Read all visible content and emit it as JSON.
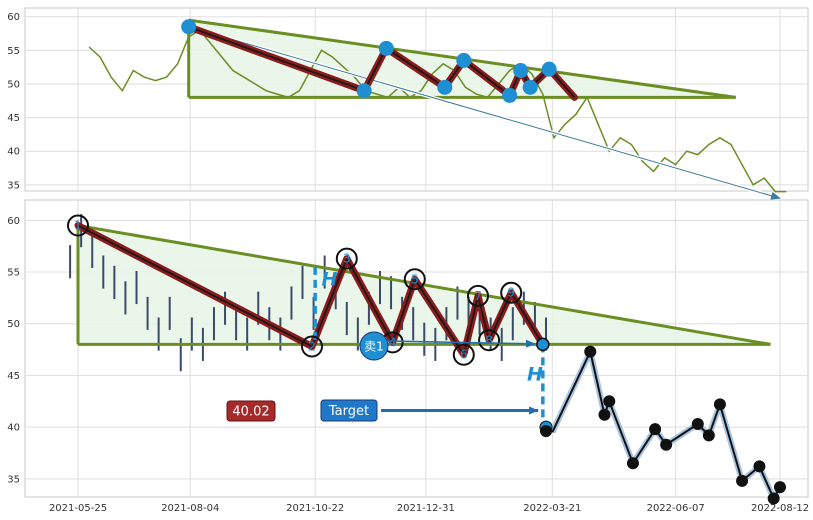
{
  "chart_data": [
    {
      "type": "line",
      "panel": "top",
      "ylim": [
        32,
        61
      ],
      "y_ticks": [
        "35",
        "40",
        "45",
        "50",
        "55",
        "60"
      ],
      "x_tick_dates": [
        "2021-05-25",
        "2021-08-04",
        "2021-10-22",
        "2021-12-31",
        "2022-03-21",
        "2022-06-07",
        "2022-08-12"
      ],
      "grid": true,
      "series": [
        {
          "color": "#6b8e23",
          "x": [
            "2021-06-01",
            "2021-06-08",
            "2021-06-15",
            "2021-06-22",
            "2021-06-29",
            "2021-07-06",
            "2021-07-13",
            "2021-07-20",
            "2021-07-27",
            "2021-08-03",
            "2021-08-10",
            "2021-08-17",
            "2021-08-24",
            "2021-08-31",
            "2021-09-07",
            "2021-09-14",
            "2021-09-21",
            "2021-09-28",
            "2021-10-05",
            "2021-10-12",
            "2021-10-19",
            "2021-10-26",
            "2021-11-02",
            "2021-11-09",
            "2021-11-16",
            "2021-11-23",
            "2021-11-30",
            "2021-12-07",
            "2021-12-14",
            "2021-12-21",
            "2021-12-28",
            "2022-01-04",
            "2022-01-11",
            "2022-01-18",
            "2022-01-25",
            "2022-02-01",
            "2022-02-08",
            "2022-02-15",
            "2022-02-22",
            "2022-03-01",
            "2022-03-08",
            "2022-03-15",
            "2022-03-22",
            "2022-03-29",
            "2022-04-05",
            "2022-04-12",
            "2022-04-19",
            "2022-04-26",
            "2022-05-03",
            "2022-05-10",
            "2022-05-17",
            "2022-05-24",
            "2022-05-31",
            "2022-06-07",
            "2022-06-14",
            "2022-06-21",
            "2022-06-28",
            "2022-07-05",
            "2022-07-12",
            "2022-07-19",
            "2022-07-26",
            "2022-08-02",
            "2022-08-09",
            "2022-08-16"
          ],
          "y": [
            55.5,
            54,
            51,
            49,
            52,
            51,
            50.5,
            51,
            53,
            57,
            58,
            56,
            54,
            52,
            51,
            50,
            49,
            48.5,
            48,
            49,
            52,
            55,
            54,
            52.5,
            51,
            49,
            48.5,
            48,
            49.5,
            48,
            49,
            51.5,
            53,
            52,
            49.5,
            48.5,
            48,
            50,
            52,
            53,
            51.5,
            48.5,
            42,
            44,
            45.5,
            48,
            44,
            40,
            42,
            41,
            38.5,
            37,
            39,
            38,
            40,
            39.5,
            41,
            42,
            41,
            38,
            35,
            36,
            34,
            34
          ]
        }
      ],
      "pattern_points": [
        {
          "x": "2021-08-03",
          "y": 58.5
        },
        {
          "x": "2021-11-22",
          "y": 49
        },
        {
          "x": "2021-12-06",
          "y": 55.3
        },
        {
          "x": "2022-01-12",
          "y": 49.5
        },
        {
          "x": "2022-01-24",
          "y": 53.5
        },
        {
          "x": "2022-02-22",
          "y": 48.3
        },
        {
          "x": "2022-03-01",
          "y": 52
        },
        {
          "x": "2022-03-07",
          "y": 49.5
        },
        {
          "x": "2022-03-19",
          "y": 52.2
        }
      ],
      "pattern_tail": {
        "x": "2022-04-04",
        "y": 48
      },
      "triangle": {
        "apex": {
          "x": "2021-08-03",
          "y": 59.5
        },
        "end_date": "2022-07-15",
        "base": 48
      },
      "trend_arrow": {
        "from": {
          "x": "2021-08-03",
          "y": 58.5
        },
        "to": {
          "x": "2022-08-12",
          "y": 33
        }
      },
      "colors": {
        "pattern_outline": "#8b1a1a",
        "pattern_inner": "#1a1a1a",
        "triangle": "#6b8e23",
        "triangle_fill": "#e6f4e6",
        "marker": "#1f8fd4",
        "arrow": "#3d7c9a"
      }
    },
    {
      "type": "line",
      "panel": "bottom",
      "ylim": [
        31.5,
        61
      ],
      "y_ticks": [
        "35",
        "40",
        "45",
        "50",
        "55",
        "60"
      ],
      "x_ticks": [
        "2021-05-25",
        "2021-08-04",
        "2021-10-22",
        "2021-12-31",
        "2022-03-21",
        "2022-06-07",
        "2022-08-12"
      ],
      "grid": true,
      "price_bars": {
        "color": "#3a4a6a",
        "x": [
          "2021-05-20",
          "2021-05-27",
          "2021-06-03",
          "2021-06-10",
          "2021-06-17",
          "2021-06-24",
          "2021-07-01",
          "2021-07-08",
          "2021-07-15",
          "2021-07-22",
          "2021-07-29",
          "2021-08-05",
          "2021-08-12",
          "2021-08-19",
          "2021-08-26",
          "2021-09-02",
          "2021-09-09",
          "2021-09-16",
          "2021-09-23",
          "2021-09-30",
          "2021-10-07",
          "2021-10-14",
          "2021-10-21",
          "2021-10-28",
          "2021-11-04",
          "2021-11-11",
          "2021-11-18",
          "2021-11-25",
          "2021-12-02",
          "2021-12-09",
          "2021-12-16",
          "2021-12-23",
          "2021-12-30",
          "2022-01-06",
          "2022-01-13",
          "2022-01-20",
          "2022-01-27",
          "2022-02-03",
          "2022-02-10",
          "2022-02-17",
          "2022-02-24",
          "2022-03-03",
          "2022-03-10",
          "2022-03-17"
        ],
        "y": [
          56,
          59,
          57,
          55,
          54,
          52.5,
          53.5,
          51,
          49,
          51,
          47,
          49,
          48,
          50,
          51.5,
          50,
          49,
          51.5,
          50,
          49,
          52,
          54,
          51,
          55,
          53,
          50.5,
          49,
          51.5,
          53.5,
          53,
          51,
          50,
          48.5,
          48,
          50,
          52,
          51,
          50.5,
          49,
          48,
          50,
          51.5,
          50.5,
          49
        ]
      },
      "forecast": {
        "color": "#111111",
        "x": [
          "2022-03-21",
          "2022-04-14",
          "2022-04-23",
          "2022-04-26",
          "2022-05-11",
          "2022-05-25",
          "2022-06-01",
          "2022-06-21",
          "2022-06-28",
          "2022-07-05",
          "2022-07-19",
          "2022-07-30",
          "2022-08-08",
          "2022-08-12",
          "2022-08-14"
        ],
        "y": [
          39.5,
          47.3,
          41.2,
          42.5,
          36.5,
          39.8,
          38.3,
          40.3,
          39.2,
          42.2,
          34.8,
          36.2,
          33.1,
          34.2,
          34
        ]
      },
      "triangle": {
        "apex": {
          "x": "2021-05-25",
          "y": 59.5
        },
        "end_date": "2022-08-06",
        "base": 48
      },
      "pattern_points": [
        {
          "label": "1",
          "x": "2021-05-25",
          "y": 59.5
        },
        {
          "label": "2",
          "x": "2021-10-20",
          "y": 47.8
        },
        {
          "label": "3",
          "x": "2021-11-11",
          "y": 56.3
        },
        {
          "label": "4",
          "x": "2021-12-10",
          "y": 48.2
        },
        {
          "label": "5",
          "x": "2021-12-24",
          "y": 54.3
        },
        {
          "label": "6",
          "x": "2022-01-24",
          "y": 47
        },
        {
          "label": "7",
          "x": "2022-02-02",
          "y": 52.7
        },
        {
          "label": "8",
          "x": "2022-02-09",
          "y": 48.4
        },
        {
          "label": "9",
          "x": "2022-02-23",
          "y": 53
        }
      ],
      "breakout": {
        "x": "2022-03-15",
        "y": 48
      },
      "target": {
        "x": "2022-03-17",
        "y": 40
      },
      "h_labels": [
        {
          "text": "H",
          "x": "2021-10-31",
          "y": 53.7
        },
        {
          "text": "H",
          "x": "2022-03-10",
          "y": 44.5
        }
      ],
      "h_lines": [
        {
          "x": "2021-10-22",
          "from": 55.5,
          "to": 48
        },
        {
          "x": "2022-03-15",
          "from": 48,
          "to": 40
        }
      ],
      "annotations": {
        "price_box": "40.02",
        "target_box": "Target",
        "sell_marker": "卖1"
      },
      "colors": {
        "pattern_outline": "#8b1a1a",
        "pattern_inner": "#1a1a1a",
        "triangle": "#6b8e23",
        "triangle_fill": "#e6f4e6",
        "marker": "#1f8fd4",
        "dashed": "#1f8fd4",
        "price_box": "#a62a2a",
        "target_box": "#1f78c8",
        "forecast_halo": "#a8c4e0"
      }
    }
  ]
}
